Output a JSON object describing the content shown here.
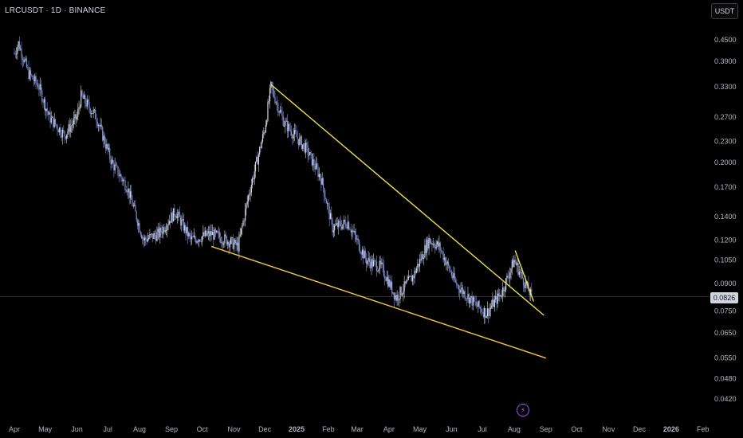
{
  "header": {
    "symbol": "LRCUSDT · 1D · BINANCE",
    "currency_button": "USDT"
  },
  "price_badge": "0.0826",
  "events_icon": "lightning-icon",
  "colors": {
    "background": "#000000",
    "candle": "#d1d4dc",
    "candle_alt": "#7b8ed6",
    "trendline": "#f2e14b",
    "lower_trendline": "#f5c542",
    "axis_text": "#b2b5be"
  },
  "chart_data": {
    "type": "candlestick",
    "scale": "log",
    "ylim": [
      0.038,
      0.5
    ],
    "y_ticks": [
      "0.4500",
      "0.3900",
      "0.3300",
      "0.2700",
      "0.2300",
      "0.2000",
      "0.1700",
      "0.1400",
      "0.1200",
      "0.1050",
      "0.0900",
      "0.0750",
      "0.0650",
      "0.0550",
      "0.0480",
      "0.0420"
    ],
    "x_ticks": [
      "Apr",
      "May",
      "Jun",
      "Jul",
      "Aug",
      "Sep",
      "Oct",
      "Nov",
      "Dec",
      "2025",
      "Feb",
      "Mar",
      "Apr",
      "May",
      "Jun",
      "Jul",
      "Aug",
      "Sep",
      "Oct",
      "Nov",
      "Dec",
      "2026",
      "Feb"
    ],
    "last_price": 0.0826,
    "price_path": [
      [
        "2024-04-01",
        0.41
      ],
      [
        "2024-04-05",
        0.44
      ],
      [
        "2024-04-15",
        0.36
      ],
      [
        "2024-04-25",
        0.33
      ],
      [
        "2024-05-05",
        0.27
      ],
      [
        "2024-05-20",
        0.24
      ],
      [
        "2024-06-01",
        0.27
      ],
      [
        "2024-06-05",
        0.31
      ],
      [
        "2024-06-20",
        0.27
      ],
      [
        "2024-07-05",
        0.2
      ],
      [
        "2024-07-20",
        0.17
      ],
      [
        "2024-08-05",
        0.12
      ],
      [
        "2024-08-20",
        0.125
      ],
      [
        "2024-09-05",
        0.145
      ],
      [
        "2024-09-20",
        0.12
      ],
      [
        "2024-10-10",
        0.125
      ],
      [
        "2024-10-25",
        0.12
      ],
      [
        "2024-11-05",
        0.115
      ],
      [
        "2024-11-15",
        0.16
      ],
      [
        "2024-12-01",
        0.25
      ],
      [
        "2024-12-07",
        0.33
      ],
      [
        "2024-12-20",
        0.26
      ],
      [
        "2025-01-10",
        0.22
      ],
      [
        "2025-01-25",
        0.18
      ],
      [
        "2025-02-05",
        0.13
      ],
      [
        "2025-02-20",
        0.135
      ],
      [
        "2025-03-10",
        0.105
      ],
      [
        "2025-03-25",
        0.1
      ],
      [
        "2025-04-08",
        0.082
      ],
      [
        "2025-04-25",
        0.095
      ],
      [
        "2025-05-10",
        0.12
      ],
      [
        "2025-05-20",
        0.115
      ],
      [
        "2025-06-05",
        0.09
      ],
      [
        "2025-06-25",
        0.078
      ],
      [
        "2025-07-05",
        0.074
      ],
      [
        "2025-07-20",
        0.085
      ],
      [
        "2025-08-01",
        0.105
      ],
      [
        "2025-08-10",
        0.092
      ],
      [
        "2025-08-18",
        0.0826
      ]
    ],
    "trendlines": [
      {
        "name": "",
        "from": [
          "2024-12-07",
          0.335
        ],
        "to": [
          "2025-08-30",
          0.073
        ]
      },
      {
        "name": "",
        "from": [
          "2024-10-10",
          0.115
        ],
        "to": [
          "2025-09-01",
          0.055
        ]
      },
      {
        "name": "",
        "from": [
          "2025-08-02",
          0.112
        ],
        "to": [
          "2025-08-20",
          0.08
        ]
      }
    ]
  }
}
